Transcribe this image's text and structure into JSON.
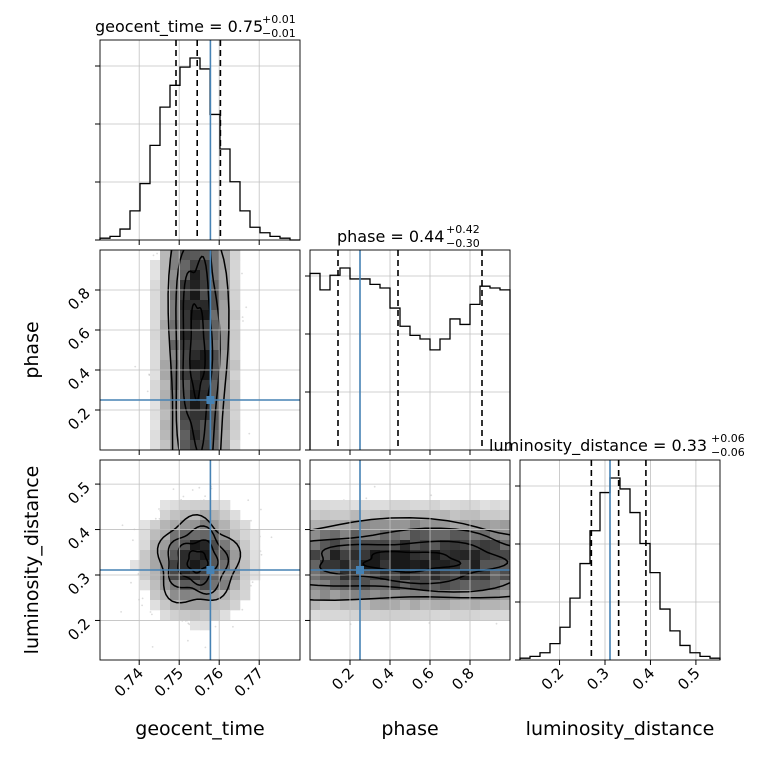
{
  "chart_data": {
    "type": "corner",
    "parameters": [
      "geocent_time",
      "phase",
      "luminosity_distance"
    ],
    "axis_labels": {
      "geocent_time": "geocent_time",
      "phase": "phase",
      "luminosity_distance": "luminosity_distance"
    },
    "ranges": {
      "geocent_time": [
        0.7302,
        0.7802
      ],
      "phase": [
        0.0,
        1.0
      ],
      "luminosity_distance": [
        0.113,
        0.553
      ]
    },
    "ticks": {
      "geocent_time": [
        "0.74",
        "0.75",
        "0.76",
        "0.77"
      ],
      "phase": [
        "0.2",
        "0.4",
        "0.6",
        "0.8"
      ],
      "luminosity_distance": [
        "0.2",
        "0.3",
        "0.4",
        "0.5"
      ]
    },
    "tick_values": {
      "geocent_time": [
        0.74,
        0.75,
        0.76,
        0.77
      ],
      "phase": [
        0.2,
        0.4,
        0.6,
        0.8
      ],
      "luminosity_distance": [
        0.2,
        0.3,
        0.4,
        0.5
      ]
    },
    "injection": {
      "geocent_time": 0.7578,
      "phase": 0.25,
      "luminosity_distance": 0.311
    },
    "titles": {
      "geocent_time": {
        "label": "geocent_time = 0.75",
        "plus": "+0.01",
        "minus": "−0.01"
      },
      "phase": {
        "label": "phase = 0.44",
        "plus": "+0.42",
        "minus": "−0.30"
      },
      "luminosity_distance": {
        "label": "luminosity_distance = 0.33",
        "plus": "+0.06",
        "minus": "−0.06"
      }
    },
    "quantiles": {
      "geocent_time": [
        0.7492,
        0.7545,
        0.7603
      ],
      "phase": [
        0.14,
        0.44,
        0.86
      ],
      "luminosity_distance": [
        0.27,
        0.33,
        0.39
      ]
    },
    "histograms": {
      "geocent_time": {
        "bins": [
          0.7302,
          0.7327,
          0.7352,
          0.7377,
          0.7402,
          0.7427,
          0.7452,
          0.7477,
          0.7502,
          0.7527,
          0.7552,
          0.7577,
          0.7602,
          0.7627,
          0.7652,
          0.7677,
          0.7702,
          0.7727,
          0.7752,
          0.7777,
          0.7802
        ],
        "counts": [
          1,
          2,
          6,
          16,
          31,
          52,
          73,
          85,
          95,
          100,
          94,
          69,
          50,
          32,
          16,
          7,
          4,
          2,
          1,
          0
        ]
      },
      "phase": {
        "bins": [
          0.0,
          0.05,
          0.1,
          0.15,
          0.2,
          0.25,
          0.3,
          0.35,
          0.4,
          0.45,
          0.5,
          0.55,
          0.6,
          0.65,
          0.7,
          0.75,
          0.8,
          0.85,
          0.9,
          0.95,
          1.0
        ],
        "counts": [
          97,
          88,
          96,
          100,
          94,
          94,
          91,
          89,
          78,
          68,
          63,
          61,
          55,
          61,
          72,
          69,
          80,
          90,
          89,
          88
        ]
      },
      "luminosity_distance": {
        "bins": [
          0.113,
          0.135,
          0.157,
          0.179,
          0.201,
          0.223,
          0.245,
          0.267,
          0.289,
          0.311,
          0.333,
          0.355,
          0.377,
          0.399,
          0.421,
          0.443,
          0.465,
          0.487,
          0.509,
          0.531,
          0.553
        ],
        "counts": [
          1,
          2,
          4,
          9,
          18,
          34,
          53,
          71,
          92,
          100,
          94,
          81,
          64,
          48,
          28,
          16,
          8,
          4,
          2,
          1
        ]
      }
    },
    "pairs": [
      {
        "x": "geocent_time",
        "y": "phase",
        "center": [
          0.7545,
          0.5
        ]
      },
      {
        "x": "geocent_time",
        "y": "luminosity_distance",
        "center": [
          0.7545,
          0.33
        ]
      },
      {
        "x": "phase",
        "y": "luminosity_distance",
        "center": [
          0.5,
          0.33
        ]
      }
    ],
    "grid": true,
    "colors": {
      "injection": "#4682b4",
      "hist": "#000000",
      "quantile": "#000000",
      "grid": "#c0c0c0"
    }
  }
}
